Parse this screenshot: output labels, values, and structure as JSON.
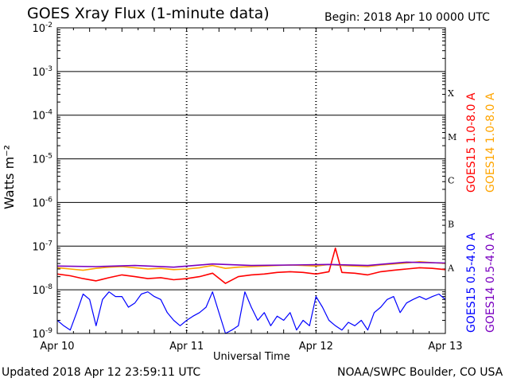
{
  "header": {
    "title": "GOES Xray Flux (1-minute data)",
    "begin": "Begin:  2018 Apr 10 0000 UTC"
  },
  "footer": {
    "updated": "Updated 2018 Apr 12 23:59:11 UTC",
    "credit": "NOAA/SWPC Boulder, CO USA"
  },
  "chart_data": {
    "type": "line",
    "title": "GOES Xray Flux (1-minute data)",
    "xlabel": "Universal Time",
    "ylabel": "Watts m⁻²",
    "yscale": "log",
    "ylim": [
      1e-09,
      0.01
    ],
    "xlim": [
      0,
      3
    ],
    "x_ticks": [
      {
        "label": "Apr 10",
        "value": 0
      },
      {
        "label": "Apr 11",
        "value": 1
      },
      {
        "label": "Apr 12",
        "value": 2
      },
      {
        "label": "Apr 13",
        "value": 3
      }
    ],
    "y_ticks": [
      {
        "base": "10",
        "exp": "-2",
        "value": 0.01
      },
      {
        "base": "10",
        "exp": "-3",
        "value": 0.001
      },
      {
        "base": "10",
        "exp": "-4",
        "value": 0.0001
      },
      {
        "base": "10",
        "exp": "-5",
        "value": 1e-05
      },
      {
        "base": "10",
        "exp": "-6",
        "value": 1e-06
      },
      {
        "base": "10",
        "exp": "-7",
        "value": 1e-07
      },
      {
        "base": "10",
        "exp": "-8",
        "value": 1e-08
      },
      {
        "base": "10",
        "exp": "-9",
        "value": 1e-09
      }
    ],
    "flare_classes": [
      {
        "label": "X",
        "value": 0.00032
      },
      {
        "label": "M",
        "value": 3.2e-05
      },
      {
        "label": "C",
        "value": 3.2e-06
      },
      {
        "label": "B",
        "value": 3.2e-07
      },
      {
        "label": "A",
        "value": 3.2e-08
      }
    ],
    "grid": true,
    "legend": "right",
    "series": [
      {
        "name": "GOES15 1.0-8.0 A",
        "color": "#ff0000",
        "x": [
          0,
          0.1,
          0.2,
          0.3,
          0.4,
          0.5,
          0.6,
          0.7,
          0.8,
          0.9,
          1.0,
          1.1,
          1.2,
          1.3,
          1.4,
          1.5,
          1.6,
          1.7,
          1.8,
          1.9,
          2.0,
          2.1,
          2.15,
          2.2,
          2.3,
          2.4,
          2.5,
          2.6,
          2.7,
          2.8,
          2.9,
          3.0
        ],
        "y": [
          2.3e-08,
          2.1e-08,
          1.8e-08,
          1.6e-08,
          1.9e-08,
          2.2e-08,
          2e-08,
          1.8e-08,
          1.9e-08,
          1.7e-08,
          1.8e-08,
          2e-08,
          2.4e-08,
          1.4e-08,
          2e-08,
          2.2e-08,
          2.3e-08,
          2.5e-08,
          2.6e-08,
          2.5e-08,
          2.3e-08,
          2.6e-08,
          9e-08,
          2.5e-08,
          2.4e-08,
          2.2e-08,
          2.6e-08,
          2.8e-08,
          3e-08,
          3.2e-08,
          3.1e-08,
          2.9e-08
        ]
      },
      {
        "name": "GOES14 1.0-8.0 A",
        "color": "#ffa500",
        "x": [
          0,
          0.1,
          0.2,
          0.3,
          0.4,
          0.5,
          0.6,
          0.7,
          0.8,
          0.9,
          1.0,
          1.1,
          1.2,
          1.3,
          1.4,
          1.5,
          1.6,
          1.7,
          1.8,
          1.9,
          2.0,
          2.1,
          2.2,
          2.3,
          2.4,
          2.5,
          2.6,
          2.7,
          2.8,
          2.9,
          3.0
        ],
        "y": [
          3.2e-08,
          3e-08,
          2.8e-08,
          3.1e-08,
          3.3e-08,
          3.4e-08,
          3.2e-08,
          3e-08,
          3.1e-08,
          2.9e-08,
          3e-08,
          3.2e-08,
          3.6e-08,
          3.1e-08,
          3.3e-08,
          3.4e-08,
          3.5e-08,
          3.6e-08,
          3.7e-08,
          3.6e-08,
          3.5e-08,
          3.8e-08,
          3.6e-08,
          3.5e-08,
          3.4e-08,
          3.7e-08,
          3.9e-08,
          4.1e-08,
          4.4e-08,
          4.2e-08,
          4e-08
        ]
      },
      {
        "name": "GOES15 0.5-4.0 A",
        "color": "#0000ff",
        "x": [
          0,
          0.05,
          0.1,
          0.15,
          0.2,
          0.25,
          0.3,
          0.35,
          0.4,
          0.45,
          0.5,
          0.55,
          0.6,
          0.65,
          0.7,
          0.75,
          0.8,
          0.85,
          0.9,
          0.95,
          1.0,
          1.05,
          1.1,
          1.15,
          1.2,
          1.25,
          1.3,
          1.35,
          1.4,
          1.45,
          1.5,
          1.55,
          1.6,
          1.65,
          1.7,
          1.75,
          1.8,
          1.85,
          1.9,
          1.95,
          2.0,
          2.05,
          2.1,
          2.15,
          2.2,
          2.25,
          2.3,
          2.35,
          2.4,
          2.45,
          2.5,
          2.55,
          2.6,
          2.65,
          2.7,
          2.75,
          2.8,
          2.85,
          2.9,
          2.95,
          3.0
        ],
        "y": [
          2e-09,
          1.5e-09,
          1.2e-09,
          3e-09,
          8e-09,
          6e-09,
          1.5e-09,
          6e-09,
          9e-09,
          7e-09,
          7e-09,
          4e-09,
          5e-09,
          8e-09,
          9e-09,
          7e-09,
          6e-09,
          3e-09,
          2e-09,
          1.5e-09,
          2e-09,
          2.5e-09,
          3e-09,
          4e-09,
          9e-09,
          3e-09,
          1e-09,
          1.2e-09,
          1.5e-09,
          9e-09,
          4e-09,
          2e-09,
          3e-09,
          1.5e-09,
          2.5e-09,
          2e-09,
          3e-09,
          1.2e-09,
          2e-09,
          1.5e-09,
          7e-09,
          4e-09,
          2e-09,
          1.5e-09,
          1.2e-09,
          1.8e-09,
          1.5e-09,
          2e-09,
          1.2e-09,
          3e-09,
          4e-09,
          6e-09,
          7e-09,
          3e-09,
          5e-09,
          6e-09,
          7e-09,
          6e-09,
          7e-09,
          8e-09,
          6e-09
        ]
      },
      {
        "name": "GOES14 0.5-4.0 A",
        "color": "#7a00c0",
        "x": [
          0,
          0.3,
          0.6,
          0.9,
          1.2,
          1.5,
          1.8,
          2.1,
          2.4,
          2.7,
          3.0
        ],
        "y": [
          3.5e-08,
          3.4e-08,
          3.6e-08,
          3.3e-08,
          3.9e-08,
          3.6e-08,
          3.7e-08,
          3.8e-08,
          3.6e-08,
          4.3e-08,
          4.1e-08
        ]
      }
    ]
  }
}
